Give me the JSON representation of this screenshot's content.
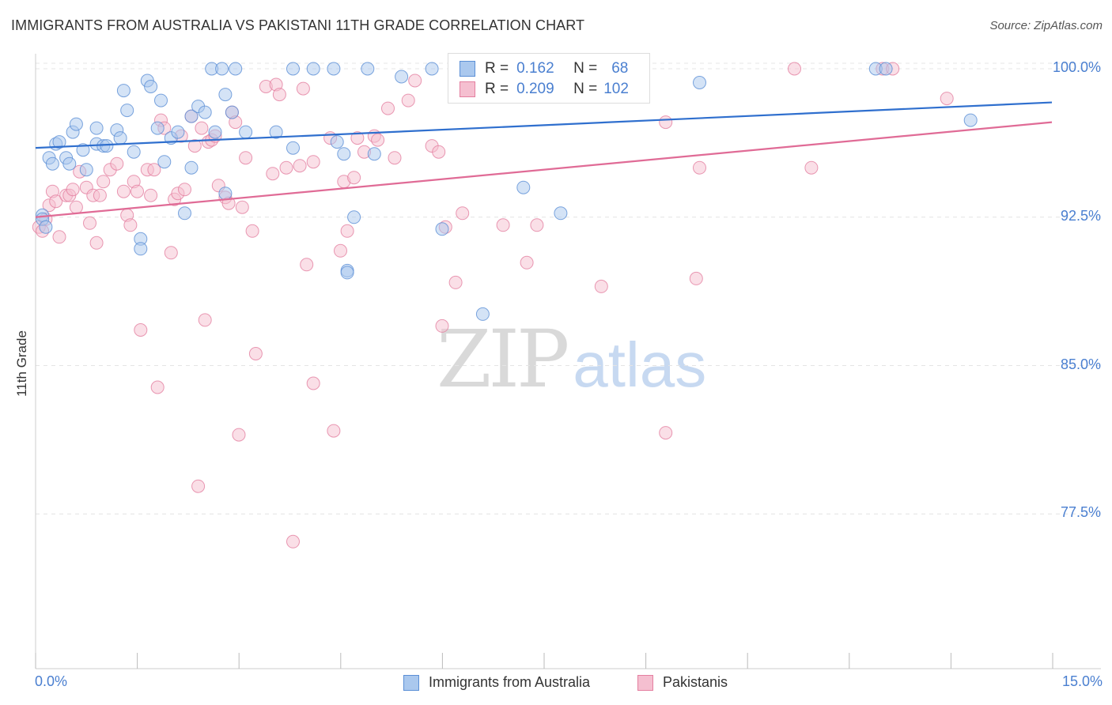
{
  "header": {
    "title": "IMMIGRANTS FROM AUSTRALIA VS PAKISTANI 11TH GRADE CORRELATION CHART",
    "source": "Source: ZipAtlas.com"
  },
  "watermark": {
    "zip": "ZIP",
    "atlas": "atlas"
  },
  "colors": {
    "blue_fill": "#aac8ee",
    "blue_stroke": "#5b8fd6",
    "blue_line": "#2f6fce",
    "pink_fill": "#f5bfd0",
    "pink_stroke": "#e47fa0",
    "pink_line": "#e06b96",
    "axis_text": "#4a7fd0",
    "grid": "#e4e4e4"
  },
  "legend": {
    "rows": [
      {
        "r_label": "R =",
        "r_value": "0.162",
        "n_label": "N =",
        "n_value": "68"
      },
      {
        "r_label": "R =",
        "r_value": "0.209",
        "n_label": "N =",
        "n_value": "102"
      }
    ]
  },
  "chart_data": {
    "type": "scatter",
    "title": "IMMIGRANTS FROM AUSTRALIA VS PAKISTANI 11TH GRADE CORRELATION CHART",
    "xlabel": "",
    "ylabel": "11th Grade",
    "xlim": [
      0.0,
      15.0
    ],
    "ylim": [
      70.0,
      100.6
    ],
    "x_tick_labels": [
      "0.0%",
      "15.0%"
    ],
    "y_ticks": [
      77.5,
      85.0,
      92.5,
      100.0
    ],
    "y_tick_labels": [
      "77.5%",
      "85.0%",
      "92.5%",
      "100.0%"
    ],
    "grid": "horizontal dashed",
    "legend_position": "top-center",
    "series": [
      {
        "name": "Immigrants from Australia",
        "R": 0.162,
        "N": 68,
        "trend": {
          "x": [
            0.0,
            15.0
          ],
          "y": [
            96.0,
            98.3
          ]
        },
        "points": [
          [
            0.1,
            92.6
          ],
          [
            0.1,
            92.4
          ],
          [
            0.15,
            92.0
          ],
          [
            0.2,
            95.5
          ],
          [
            0.25,
            95.2
          ],
          [
            0.3,
            96.2
          ],
          [
            0.35,
            96.3
          ],
          [
            0.45,
            95.5
          ],
          [
            0.5,
            95.2
          ],
          [
            0.55,
            96.8
          ],
          [
            0.6,
            97.2
          ],
          [
            0.75,
            94.9
          ],
          [
            0.7,
            95.9
          ],
          [
            0.9,
            97.0
          ],
          [
            0.9,
            96.2
          ],
          [
            1.0,
            96.1
          ],
          [
            1.05,
            96.1
          ],
          [
            1.2,
            96.9
          ],
          [
            1.25,
            96.5
          ],
          [
            1.3,
            98.9
          ],
          [
            1.35,
            97.9
          ],
          [
            1.45,
            95.8
          ],
          [
            1.55,
            91.4
          ],
          [
            1.55,
            90.9
          ],
          [
            1.65,
            99.4
          ],
          [
            1.7,
            99.1
          ],
          [
            1.8,
            97.0
          ],
          [
            1.85,
            98.4
          ],
          [
            1.9,
            95.3
          ],
          [
            2.0,
            96.5
          ],
          [
            2.1,
            96.8
          ],
          [
            2.2,
            92.7
          ],
          [
            2.3,
            97.6
          ],
          [
            2.3,
            95.0
          ],
          [
            2.4,
            98.1
          ],
          [
            2.5,
            97.8
          ],
          [
            2.6,
            100.0
          ],
          [
            2.65,
            96.8
          ],
          [
            2.75,
            100.0
          ],
          [
            2.8,
            93.7
          ],
          [
            2.8,
            98.7
          ],
          [
            2.9,
            97.8
          ],
          [
            2.95,
            100.0
          ],
          [
            3.1,
            96.8
          ],
          [
            3.55,
            96.8
          ],
          [
            3.8,
            96.0
          ],
          [
            3.8,
            100.0
          ],
          [
            4.1,
            100.0
          ],
          [
            4.4,
            100.0
          ],
          [
            4.45,
            96.3
          ],
          [
            4.55,
            95.7
          ],
          [
            4.9,
            100.0
          ],
          [
            4.6,
            89.8
          ],
          [
            4.6,
            89.7
          ],
          [
            4.7,
            92.5
          ],
          [
            5.0,
            95.7
          ],
          [
            5.4,
            99.6
          ],
          [
            5.85,
            100.0
          ],
          [
            6.3,
            100.0
          ],
          [
            6.5,
            100.0
          ],
          [
            6.0,
            91.9
          ],
          [
            6.6,
            87.6
          ],
          [
            7.2,
            94.0
          ],
          [
            7.75,
            92.7
          ],
          [
            9.8,
            99.3
          ],
          [
            12.4,
            100.0
          ],
          [
            12.55,
            100.0
          ],
          [
            13.8,
            97.4
          ]
        ]
      },
      {
        "name": "Pakistanis",
        "R": 0.209,
        "N": 102,
        "trend": {
          "x": [
            0.0,
            15.0
          ],
          "y": [
            92.5,
            97.3
          ]
        },
        "points": [
          [
            0.05,
            92.0
          ],
          [
            0.1,
            91.8
          ],
          [
            0.15,
            92.4
          ],
          [
            0.2,
            93.1
          ],
          [
            0.25,
            93.8
          ],
          [
            0.3,
            93.3
          ],
          [
            0.35,
            91.5
          ],
          [
            0.45,
            93.6
          ],
          [
            0.5,
            93.6
          ],
          [
            0.55,
            93.9
          ],
          [
            0.6,
            93.0
          ],
          [
            0.65,
            94.8
          ],
          [
            0.75,
            94.0
          ],
          [
            0.8,
            92.2
          ],
          [
            0.85,
            93.6
          ],
          [
            0.9,
            91.2
          ],
          [
            0.95,
            93.6
          ],
          [
            1.0,
            94.3
          ],
          [
            1.1,
            94.9
          ],
          [
            1.2,
            95.2
          ],
          [
            1.3,
            93.8
          ],
          [
            1.35,
            92.6
          ],
          [
            1.4,
            92.1
          ],
          [
            1.45,
            94.3
          ],
          [
            1.5,
            93.8
          ],
          [
            1.55,
            86.8
          ],
          [
            1.65,
            94.9
          ],
          [
            1.7,
            93.6
          ],
          [
            1.75,
            94.9
          ],
          [
            1.8,
            83.9
          ],
          [
            1.85,
            97.4
          ],
          [
            1.9,
            97.0
          ],
          [
            2.0,
            90.7
          ],
          [
            2.05,
            93.4
          ],
          [
            2.1,
            93.7
          ],
          [
            2.15,
            96.6
          ],
          [
            2.2,
            93.9
          ],
          [
            2.3,
            97.6
          ],
          [
            2.35,
            96.1
          ],
          [
            2.4,
            78.9
          ],
          [
            2.45,
            97.0
          ],
          [
            2.5,
            87.3
          ],
          [
            2.55,
            96.3
          ],
          [
            2.6,
            96.4
          ],
          [
            2.65,
            96.6
          ],
          [
            2.7,
            94.1
          ],
          [
            2.8,
            93.5
          ],
          [
            2.85,
            93.2
          ],
          [
            2.9,
            97.8
          ],
          [
            2.95,
            97.3
          ],
          [
            3.0,
            81.5
          ],
          [
            3.05,
            93.0
          ],
          [
            3.1,
            95.5
          ],
          [
            3.2,
            91.8
          ],
          [
            3.25,
            85.6
          ],
          [
            3.4,
            99.1
          ],
          [
            3.5,
            94.7
          ],
          [
            3.55,
            99.2
          ],
          [
            3.6,
            98.7
          ],
          [
            3.7,
            95.0
          ],
          [
            3.8,
            76.1
          ],
          [
            3.9,
            95.1
          ],
          [
            3.95,
            99.0
          ],
          [
            4.0,
            90.1
          ],
          [
            4.1,
            95.3
          ],
          [
            4.1,
            84.1
          ],
          [
            4.35,
            96.5
          ],
          [
            4.4,
            81.7
          ],
          [
            4.5,
            90.8
          ],
          [
            4.55,
            94.3
          ],
          [
            4.6,
            91.8
          ],
          [
            4.7,
            94.5
          ],
          [
            4.75,
            96.5
          ],
          [
            4.85,
            95.8
          ],
          [
            5.0,
            96.6
          ],
          [
            5.05,
            96.4
          ],
          [
            5.2,
            98.0
          ],
          [
            5.3,
            95.5
          ],
          [
            5.5,
            98.4
          ],
          [
            5.6,
            99.4
          ],
          [
            5.85,
            96.1
          ],
          [
            5.95,
            95.8
          ],
          [
            6.0,
            87.0
          ],
          [
            6.05,
            92.0
          ],
          [
            6.2,
            89.2
          ],
          [
            6.3,
            92.7
          ],
          [
            6.9,
            92.1
          ],
          [
            7.25,
            90.2
          ],
          [
            7.4,
            92.1
          ],
          [
            7.9,
            99.7
          ],
          [
            8.35,
            89.0
          ],
          [
            8.7,
            98.6
          ],
          [
            9.3,
            97.3
          ],
          [
            9.3,
            81.6
          ],
          [
            9.75,
            89.4
          ],
          [
            9.8,
            95.0
          ],
          [
            11.2,
            100.0
          ],
          [
            11.45,
            95.0
          ],
          [
            12.5,
            100.0
          ],
          [
            12.65,
            100.0
          ],
          [
            13.45,
            98.5
          ],
          [
            6.55,
            100.0
          ]
        ]
      }
    ]
  },
  "bottom_legend": {
    "items": [
      "Immigrants from Australia",
      "Pakistanis"
    ]
  }
}
